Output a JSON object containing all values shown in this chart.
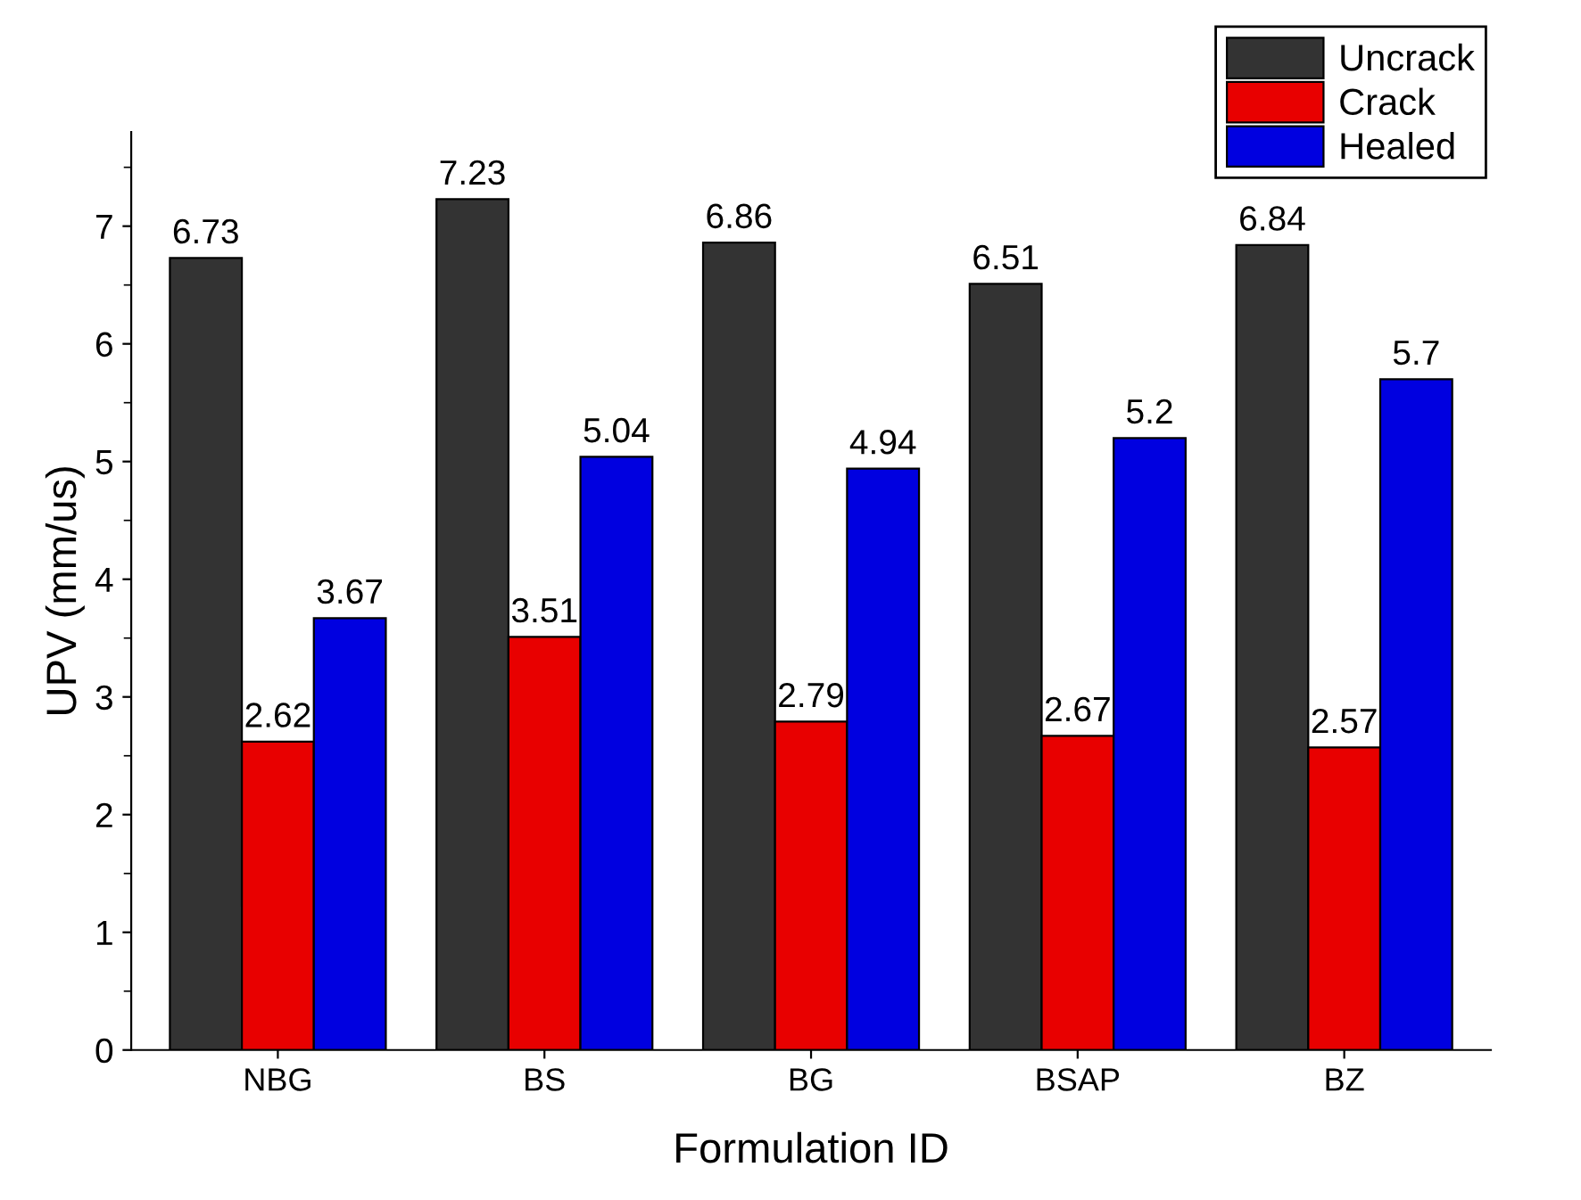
{
  "chart_data": {
    "type": "bar",
    "xlabel": "Formulation ID",
    "ylabel": "UPV (mm/us)",
    "categories": [
      "NBG",
      "BS",
      "BG",
      "BSAP",
      "BZ"
    ],
    "series": [
      {
        "name": "Uncrack",
        "color": "#333333",
        "values": [
          6.73,
          7.23,
          6.86,
          6.51,
          6.84
        ]
      },
      {
        "name": "Crack",
        "color": "#e80000",
        "values": [
          2.62,
          3.51,
          2.79,
          2.67,
          2.57
        ]
      },
      {
        "name": "Healed",
        "color": "#0000e0",
        "values": [
          3.67,
          5.04,
          4.94,
          5.2,
          5.7
        ]
      }
    ],
    "ylim": [
      0,
      7.8
    ],
    "yticks": [
      0,
      1,
      2,
      3,
      4,
      5,
      6,
      7
    ],
    "data_labels": true,
    "grid": false,
    "legend": "top right"
  }
}
